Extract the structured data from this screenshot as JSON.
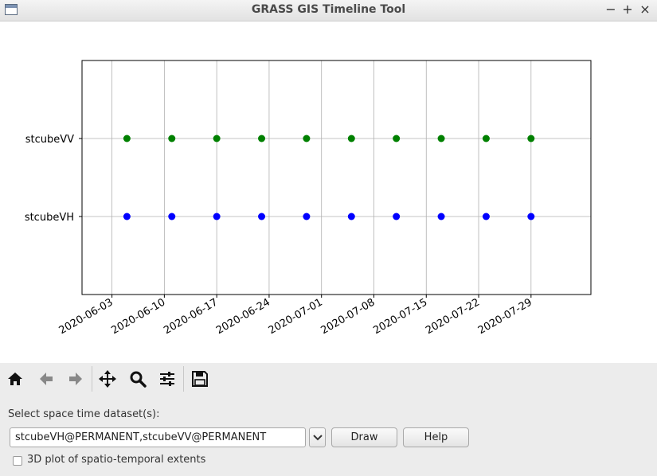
{
  "window": {
    "title": "GRASS GIS Timeline Tool",
    "minimize": "−",
    "maximize": "+",
    "close": "×"
  },
  "chart_data": {
    "type": "scatter",
    "title": "",
    "xlabel": "",
    "ylabel": "",
    "grid": true,
    "y_categories": [
      "stcubeVH",
      "stcubeVV"
    ],
    "xlim": [
      "2020-05-30",
      "2020-08-06"
    ],
    "x_ticks": [
      "2020-06-03",
      "2020-06-10",
      "2020-06-17",
      "2020-06-24",
      "2020-07-01",
      "2020-07-08",
      "2020-07-15",
      "2020-07-22",
      "2020-07-29"
    ],
    "series": [
      {
        "category": "stcubeVV",
        "color": "#008000",
        "x": [
          "2020-06-05",
          "2020-06-11",
          "2020-06-17",
          "2020-06-23",
          "2020-06-29",
          "2020-07-05",
          "2020-07-11",
          "2020-07-17",
          "2020-07-23",
          "2020-07-29"
        ]
      },
      {
        "category": "stcubeVH",
        "color": "#0000ff",
        "x": [
          "2020-06-05",
          "2020-06-11",
          "2020-06-17",
          "2020-06-23",
          "2020-06-29",
          "2020-07-05",
          "2020-07-11",
          "2020-07-17",
          "2020-07-23",
          "2020-07-29"
        ]
      }
    ]
  },
  "toolbar": {
    "icons": [
      "home-icon",
      "back-arrow-icon",
      "forward-arrow-icon",
      "pan-icon",
      "zoom-icon",
      "configure-subplots-icon",
      "save-icon"
    ]
  },
  "controls": {
    "dataset_label": "Select space time dataset(s):",
    "dataset_value": "stcubeVH@PERMANENT,stcubeVV@PERMANENT",
    "draw_label": "Draw",
    "help_label": "Help",
    "plot3d_label": "3D plot of spatio-temporal extents",
    "plot3d_checked": false
  }
}
